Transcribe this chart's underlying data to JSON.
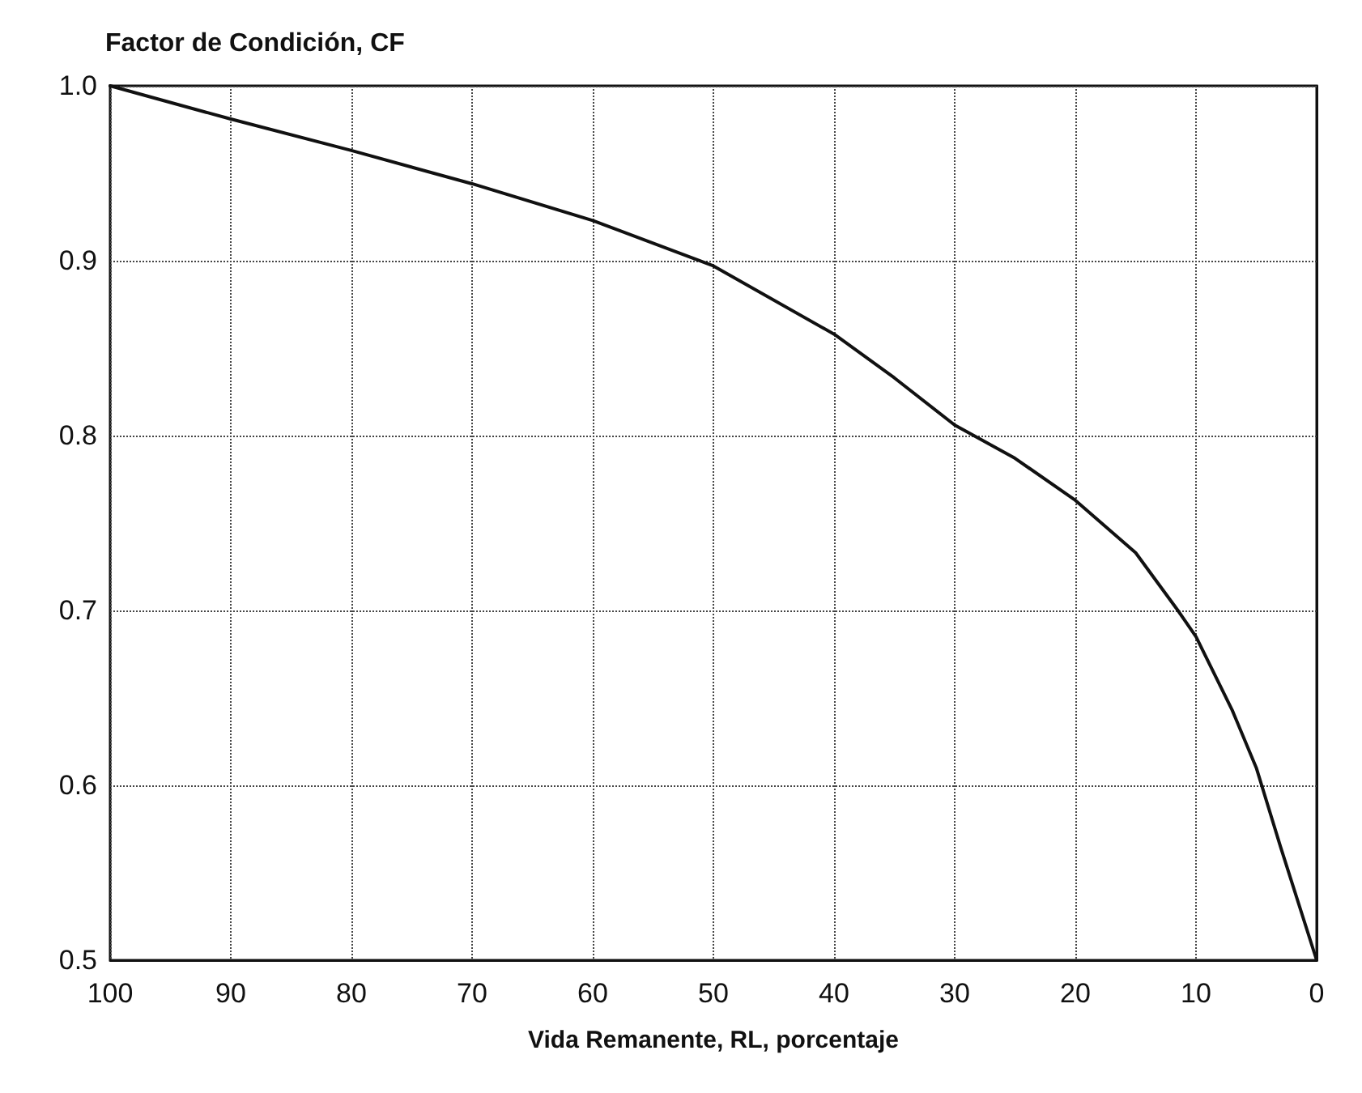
{
  "chart_data": {
    "type": "line",
    "ylabel": "Factor de Condición, CF",
    "xlabel": "Vida Remanente, RL, porcentaje",
    "x": [
      100,
      90,
      80,
      70,
      60,
      50,
      40,
      35,
      30,
      25,
      20,
      15,
      11.5,
      10,
      7,
      5,
      3,
      0
    ],
    "series": [
      {
        "color": "#111111",
        "values": [
          1.0,
          0.981,
          0.963,
          0.944,
          0.923,
          0.897,
          0.858,
          0.833,
          0.806,
          0.787,
          0.763,
          0.733,
          0.7,
          0.685,
          0.643,
          0.61,
          0.565,
          0.5
        ]
      }
    ],
    "xlim": [
      100,
      0
    ],
    "xticks": [
      100,
      90,
      80,
      70,
      60,
      50,
      40,
      30,
      20,
      10,
      0
    ],
    "ylim": [
      0.5,
      1.0
    ],
    "yticks": [
      0.5,
      0.6,
      0.7,
      0.8,
      0.9,
      {
        "value": 1,
        "label": "1.0"
      }
    ],
    "grid": true,
    "marker": "none",
    "line_style": "solid"
  }
}
